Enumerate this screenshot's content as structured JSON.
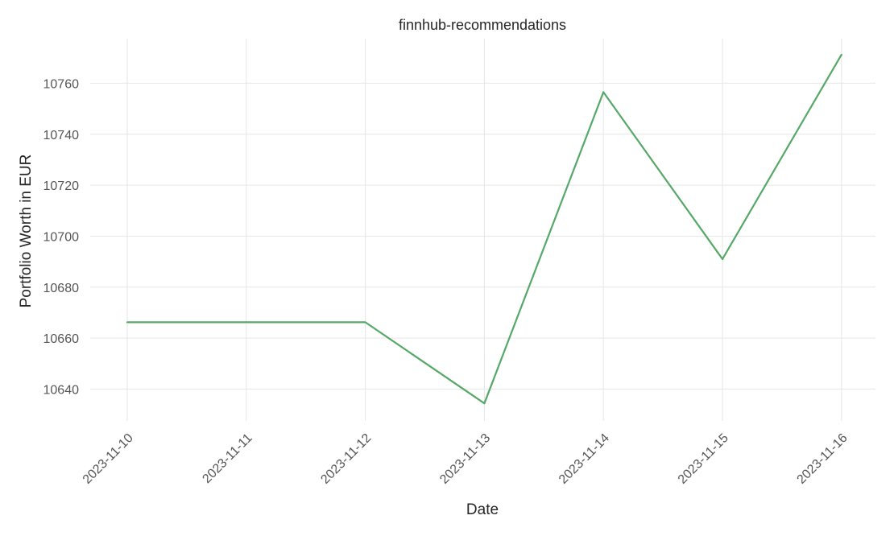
{
  "chart_data": {
    "type": "line",
    "title": "finnhub-recommendations",
    "xlabel": "Date",
    "ylabel": "Portfolio Worth in EUR",
    "x": [
      "2023-11-10",
      "2023-11-11",
      "2023-11-12",
      "2023-11-13",
      "2023-11-14",
      "2023-11-15",
      "2023-11-16"
    ],
    "series": [
      {
        "values": [
          10666.2,
          10666.2,
          10666.2,
          10634.4,
          10756.5,
          10691.0,
          10771.2
        ],
        "color": "#55a868"
      }
    ],
    "yticks": [
      10640,
      10660,
      10680,
      10700,
      10720,
      10740,
      10760
    ],
    "ytick_labels": [
      "10640",
      "10660",
      "10680",
      "10700",
      "10720",
      "10740",
      "10760"
    ],
    "xtick_labels": [
      "2023-11-10",
      "2023-11-11",
      "2023-11-12",
      "2023-11-13",
      "2023-11-14",
      "2023-11-15",
      "2023-11-16"
    ],
    "ylim": [
      10627.5,
      10777.5
    ],
    "grid": true,
    "colors": {
      "grid": "#e6e6e6",
      "text": "#262626",
      "tick_text": "#555555"
    }
  }
}
